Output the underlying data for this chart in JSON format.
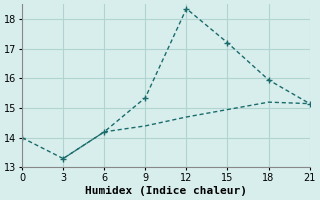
{
  "xlabel": "Humidex (Indice chaleur)",
  "background_color": "#d8eeed",
  "grid_color": "#b0d4d0",
  "line_color": "#1a6b6b",
  "line1_x": [
    0,
    3,
    6,
    9,
    12,
    15,
    18,
    21
  ],
  "line1_y": [
    14.0,
    13.3,
    14.2,
    15.35,
    18.35,
    17.2,
    15.95,
    15.15
  ],
  "line2_x": [
    3,
    6,
    9,
    12,
    15,
    18,
    21
  ],
  "line2_y": [
    13.3,
    14.2,
    14.4,
    14.7,
    14.95,
    15.2,
    15.15
  ],
  "xlim": [
    0,
    21
  ],
  "ylim": [
    13.0,
    18.5
  ],
  "xticks": [
    0,
    3,
    6,
    9,
    12,
    15,
    18,
    21
  ],
  "yticks": [
    13,
    14,
    15,
    16,
    17,
    18
  ],
  "tick_fontsize": 7,
  "xlabel_fontsize": 8
}
